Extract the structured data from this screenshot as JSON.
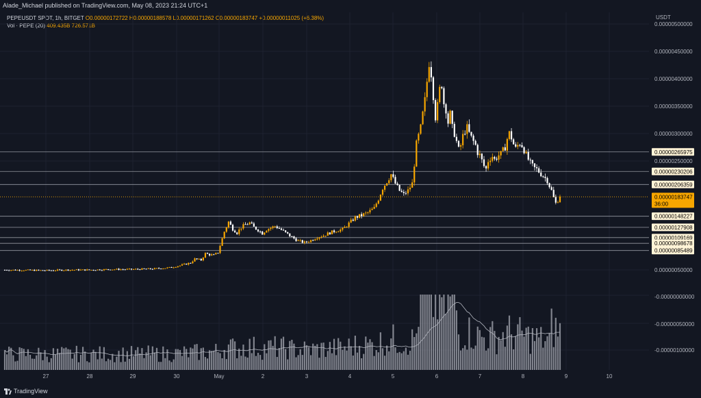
{
  "header": {
    "byline": "Alade_Michael published on TradingView.com, May 08, 2023 21:24 UTC+1"
  },
  "legend": {
    "symbol": "PEPEUSDT SPOT, 1h, BITGET",
    "ohlc": "O0.00000172722 H0.00000188578 L0.00000171262 C0.00000183747 +0.00000011025 (+6.38%)",
    "vol_label": "Vol · PEPE (20)",
    "vol_values": "409.435B  726.571B"
  },
  "axis": {
    "currency": "USDT"
  },
  "footer": {
    "brand": "TradingView"
  },
  "colors": {
    "up": "#f7a600",
    "down": "#ffffff",
    "background": "#131722",
    "volume": "#9598a1",
    "levels": "#9598a1",
    "last_price": "#f7a600"
  },
  "chart_data": {
    "type": "candlestick",
    "y_ticks": [
      "0.00000500000",
      "0.00000450000",
      "0.00000400000",
      "0.00000350000",
      "0.00000300000",
      "0.00000250000",
      "0.00000050000",
      "-0.00000000000",
      "-0.00000050000",
      "-0.00000100000"
    ],
    "x_ticks": [
      "27",
      "28",
      "29",
      "30",
      "May",
      "2",
      "3",
      "4",
      "5",
      "6",
      "7",
      "8",
      "9",
      "10"
    ],
    "levels": [
      "0.00000265975",
      "0.00000230206",
      "0.00000206359",
      "0.00000148227",
      "0.00000127908",
      "0.00000109169",
      "0.00000098678",
      "0.00000085489"
    ],
    "last_price": {
      "value": "0.00000183747",
      "countdown": "36:00"
    },
    "close_path": [
      [
        0,
        5e-07
      ],
      [
        20,
        4.9e-07
      ],
      [
        30,
        5e-07
      ],
      [
        40,
        5e-07
      ],
      [
        50,
        5.1e-07
      ],
      [
        60,
        5.1e-07
      ],
      [
        70,
        5.2e-07
      ],
      [
        78,
        5.4e-07
      ],
      [
        83,
        5.8e-07
      ],
      [
        88,
        6.3e-07
      ],
      [
        90,
        7e-07
      ],
      [
        93,
        6.8e-07
      ],
      [
        95,
        8e-07
      ],
      [
        97,
        7.8e-07
      ],
      [
        99,
        7.7e-07
      ],
      [
        101,
        8.2e-07
      ],
      [
        104,
        1.2e-06
      ],
      [
        106,
        1.38e-06
      ],
      [
        108,
        1.25e-06
      ],
      [
        110,
        1.18e-06
      ],
      [
        112,
        1.28e-06
      ],
      [
        114,
        1.33e-06
      ],
      [
        116,
        1.36e-06
      ],
      [
        118,
        1.28e-06
      ],
      [
        120,
        1.23e-06
      ],
      [
        122,
        1.17e-06
      ],
      [
        124,
        1.24e-06
      ],
      [
        126,
        1.27e-06
      ],
      [
        128,
        1.3e-06
      ],
      [
        130,
        1.26e-06
      ],
      [
        133,
        1.18e-06
      ],
      [
        136,
        1.1e-06
      ],
      [
        139,
        1.03e-06
      ],
      [
        142,
        1e-06
      ],
      [
        145,
        1.04e-06
      ],
      [
        148,
        1.1e-06
      ],
      [
        151,
        1.13e-06
      ],
      [
        154,
        1.18e-06
      ],
      [
        157,
        1.22e-06
      ],
      [
        160,
        1.24e-06
      ],
      [
        163,
        1.35e-06
      ],
      [
        166,
        1.46e-06
      ],
      [
        169,
        1.5e-06
      ],
      [
        172,
        1.55e-06
      ],
      [
        175,
        1.63e-06
      ],
      [
        177,
        1.8e-06
      ],
      [
        179,
        2e-06
      ],
      [
        181,
        2.12e-06
      ],
      [
        183,
        2.25e-06
      ],
      [
        185,
        2.08e-06
      ],
      [
        187,
        1.95e-06
      ],
      [
        189,
        1.88e-06
      ],
      [
        191,
        1.95e-06
      ],
      [
        193,
        2.08e-06
      ],
      [
        195,
        2.8e-06
      ],
      [
        197,
        3.1e-06
      ],
      [
        199,
        3.6e-06
      ],
      [
        200,
        3.95e-06
      ],
      [
        201,
        4.3e-06
      ],
      [
        202,
        4.1e-06
      ],
      [
        203,
        3.7e-06
      ],
      [
        204,
        3.3e-06
      ],
      [
        205,
        3.5e-06
      ],
      [
        206,
        3.8e-06
      ],
      [
        207,
        3.9e-06
      ],
      [
        208,
        3.55e-06
      ],
      [
        209,
        3.45e-06
      ],
      [
        210,
        3.2e-06
      ],
      [
        211,
        3.35e-06
      ],
      [
        212,
        3.1e-06
      ],
      [
        213,
        3e-06
      ],
      [
        214,
        2.85e-06
      ],
      [
        215,
        2.7e-06
      ],
      [
        216,
        2.78e-06
      ],
      [
        217,
        2.95e-06
      ],
      [
        218,
        3.05e-06
      ],
      [
        219,
        3.1e-06
      ],
      [
        220,
        3e-06
      ],
      [
        221,
        2.92e-06
      ],
      [
        222,
        2.85e-06
      ],
      [
        223,
        2.78e-06
      ],
      [
        224,
        2.65e-06
      ],
      [
        225,
        2.6e-06
      ],
      [
        226,
        2.5e-06
      ],
      [
        227,
        2.4e-06
      ],
      [
        228,
        2.35e-06
      ],
      [
        229,
        2.5e-06
      ],
      [
        230,
        2.55e-06
      ],
      [
        231,
        2.58e-06
      ],
      [
        232,
        2.52e-06
      ],
      [
        233,
        2.56e-06
      ],
      [
        234,
        2.6e-06
      ],
      [
        235,
        2.62e-06
      ],
      [
        236,
        2.68e-06
      ],
      [
        237,
        2.75e-06
      ],
      [
        238,
        2.9e-06
      ],
      [
        239,
        3e-06
      ],
      [
        240,
        2.92e-06
      ],
      [
        241,
        2.8e-06
      ],
      [
        242,
        2.72e-06
      ],
      [
        243,
        2.78e-06
      ],
      [
        244,
        2.82e-06
      ],
      [
        245,
        2.78e-06
      ],
      [
        246,
        2.7e-06
      ],
      [
        247,
        2.6e-06
      ],
      [
        248,
        2.52e-06
      ],
      [
        249,
        2.45e-06
      ],
      [
        250,
        2.4e-06
      ],
      [
        251,
        2.36e-06
      ],
      [
        252,
        2.34e-06
      ],
      [
        253,
        2.3e-06
      ],
      [
        254,
        2.26e-06
      ],
      [
        255,
        2.22e-06
      ],
      [
        256,
        2.18e-06
      ],
      [
        257,
        2.14e-06
      ],
      [
        258,
        2.04e-06
      ],
      [
        259,
        1.95e-06
      ],
      [
        260,
        1.82e-06
      ],
      [
        261,
        1.72e-06
      ],
      [
        262,
        1.78e-06
      ],
      [
        263,
        1.84e-06
      ]
    ],
    "candle_count": 264
  }
}
